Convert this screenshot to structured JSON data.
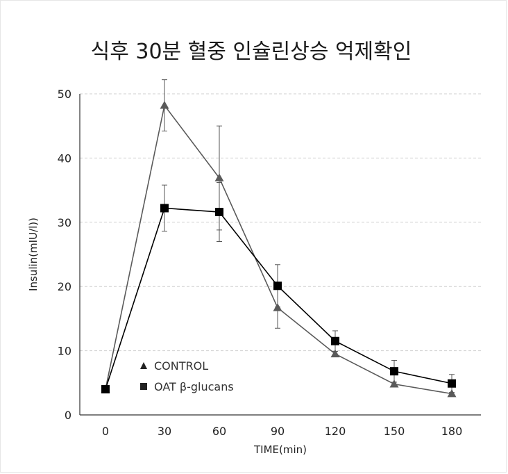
{
  "chart_data": {
    "type": "line",
    "title": "식후 30분 혈중 인슐린상승 억제확인",
    "xlabel": "TIME(min)",
    "ylabel": "Insulin(mIU/l))",
    "x": [
      0,
      30,
      60,
      90,
      120,
      150,
      180
    ],
    "x_tick_labels": [
      "0",
      "30",
      "60",
      "90",
      "120",
      "150",
      "180"
    ],
    "ylim": [
      0,
      50
    ],
    "y_ticks": [
      0,
      10,
      20,
      30,
      40,
      50
    ],
    "grid": "horizontal dashed",
    "legend_position": "lower-left",
    "series": [
      {
        "name": "CONTROL",
        "marker": "triangle",
        "color": "#5a5a5a",
        "values": [
          4.0,
          48.2,
          36.9,
          16.7,
          9.5,
          4.8,
          3.3
        ],
        "error": [
          0,
          4.0,
          8.1,
          3.2,
          0,
          0,
          0
        ]
      },
      {
        "name": "OAT β-glucans",
        "marker": "square",
        "color": "#000000",
        "values": [
          4.0,
          32.2,
          31.6,
          20.1,
          11.5,
          6.8,
          4.9
        ],
        "error": [
          0,
          3.6,
          4.6,
          3.3,
          1.6,
          1.7,
          1.4
        ]
      }
    ]
  }
}
